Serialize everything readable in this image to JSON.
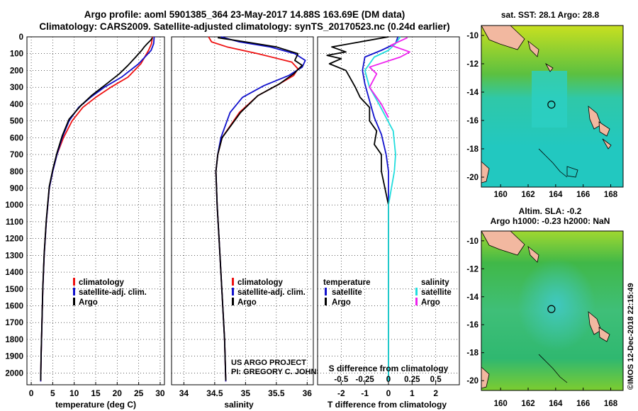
{
  "header": {
    "line1": "Argo profile: aoml 5901385_364 23-May-2017 14.88S 163.69E (DM data)",
    "line2": "Climatology: CARS2009. Satellite-adjusted climatology: synTS_20170523.nc (0.24d earlier)"
  },
  "credit": {
    "project": "US ARGO PROJECT",
    "pi": "PI: GREGORY C. JOHNSON",
    "imos": "©IMOS 12-Dec-2018 22:15:49"
  },
  "colors": {
    "climatology": "#ee1111",
    "satellite": "#1111cc",
    "argo": "#000000",
    "sat_salinity": "#22dddd",
    "argo_salinity": "#ee22ee",
    "land": "#f2b8a0",
    "sea_low": "#22c8c0",
    "sea_mid": "#22b050",
    "sea_high": "#c8e020"
  },
  "chart_data": [
    {
      "id": "temperature",
      "type": "line",
      "title": "",
      "xlabel": "temperature (deg C)",
      "ylabel": "",
      "xlim": [
        -1,
        31
      ],
      "ylim": [
        2070,
        0
      ],
      "xticks": [
        0,
        5,
        10,
        15,
        20,
        25,
        30
      ],
      "yticks": [
        0,
        100,
        200,
        300,
        400,
        500,
        600,
        700,
        800,
        900,
        1000,
        1100,
        1200,
        1300,
        1400,
        1500,
        1600,
        1700,
        1800,
        1900,
        2000
      ],
      "grid": true,
      "legend": {
        "position": "lower-center",
        "entries": [
          "climatology",
          "satellite-adj. clim.",
          "Argo"
        ]
      },
      "series": [
        {
          "name": "climatology",
          "color": "#ee1111",
          "x": [
            28.2,
            28.0,
            27.3,
            25.5,
            22.5,
            18.5,
            15.0,
            12.0,
            9.5,
            7.5,
            6.0,
            5.0,
            4.2,
            3.5,
            3.0,
            2.7,
            2.5,
            2.3,
            2.2
          ],
          "y": [
            0,
            40,
            80,
            160,
            240,
            300,
            360,
            420,
            500,
            600,
            700,
            800,
            900,
            1100,
            1300,
            1500,
            1700,
            1900,
            2050
          ]
        },
        {
          "name": "satellite-adj. clim.",
          "color": "#1111cc",
          "x": [
            28.6,
            28.5,
            27.9,
            25.0,
            21.0,
            17.0,
            13.8,
            11.0,
            8.8,
            7.2,
            6.0,
            5.0,
            4.2,
            3.5,
            3.0,
            2.7,
            2.5,
            2.3,
            2.2
          ],
          "y": [
            0,
            40,
            80,
            160,
            240,
            300,
            360,
            420,
            500,
            600,
            700,
            800,
            900,
            1100,
            1300,
            1500,
            1700,
            1900,
            2050
          ]
        },
        {
          "name": "Argo",
          "color": "#000000",
          "x": [
            28.2,
            27.8,
            27.0,
            26.3,
            25.7,
            24.3,
            22.5,
            20.5,
            17.5,
            14.0,
            11.5,
            8.8,
            7.2,
            6.0,
            5.0,
            4.2,
            3.5,
            3.0,
            2.7,
            2.5,
            2.3,
            2.2
          ],
          "y": [
            5,
            20,
            40,
            60,
            80,
            120,
            170,
            220,
            280,
            350,
            410,
            490,
            590,
            690,
            790,
            890,
            1090,
            1290,
            1490,
            1690,
            1890,
            2045
          ]
        }
      ]
    },
    {
      "id": "salinity",
      "type": "line",
      "title": "",
      "xlabel": "salinity",
      "ylabel": "",
      "xlim": [
        33.8,
        36.1
      ],
      "ylim": [
        2070,
        0
      ],
      "xticks": [
        34,
        34.5,
        35,
        35.5,
        36
      ],
      "grid": true,
      "legend": {
        "position": "lower-center",
        "entries": [
          "climatology",
          "satellite-adj. clim.",
          "Argo"
        ]
      },
      "series": [
        {
          "name": "climatology",
          "color": "#ee1111",
          "x": [
            34.4,
            34.45,
            34.7,
            35.2,
            35.75,
            35.85,
            35.78,
            35.55,
            35.2,
            34.9,
            34.62,
            34.55,
            34.52,
            34.54,
            34.57,
            34.6,
            34.63,
            34.66,
            34.68
          ],
          "y": [
            0,
            30,
            60,
            100,
            150,
            190,
            230,
            280,
            350,
            450,
            600,
            700,
            800,
            1000,
            1200,
            1400,
            1600,
            1800,
            2050
          ]
        },
        {
          "name": "satellite-adj. clim.",
          "color": "#1111cc",
          "x": [
            34.6,
            34.9,
            35.4,
            35.8,
            35.97,
            35.92,
            35.7,
            35.3,
            34.95,
            34.75,
            34.6,
            34.55,
            34.52,
            34.54,
            34.57,
            34.6,
            34.63,
            34.66,
            34.68
          ],
          "y": [
            0,
            30,
            60,
            100,
            140,
            180,
            230,
            290,
            360,
            450,
            600,
            700,
            800,
            1000,
            1200,
            1400,
            1600,
            1800,
            2050
          ]
        },
        {
          "name": "Argo",
          "color": "#000000",
          "x": [
            34.55,
            35.0,
            35.5,
            35.85,
            35.8,
            35.92,
            35.78,
            35.55,
            35.2,
            34.92,
            34.62,
            34.55,
            34.52,
            34.54,
            34.57,
            34.6,
            34.63,
            34.66,
            34.68
          ],
          "y": [
            5,
            30,
            60,
            100,
            140,
            170,
            220,
            280,
            350,
            450,
            600,
            700,
            800,
            1000,
            1200,
            1400,
            1600,
            1800,
            2045
          ]
        }
      ]
    },
    {
      "id": "difference",
      "type": "line",
      "title": "",
      "xlabel": "T difference from climatology",
      "x2label": "S difference from climatology",
      "ylabel": "",
      "xlim": [
        -3,
        3
      ],
      "x2lim": [
        -0.75,
        0.75
      ],
      "ylim": [
        2070,
        0
      ],
      "xticks": [
        -2,
        -1,
        0,
        1,
        2
      ],
      "x2ticks": [
        -0.5,
        -0.25,
        0,
        0.25,
        0.5
      ],
      "grid": true,
      "legend": {
        "position": "lower-center",
        "entries": [
          "temperature",
          "satellite",
          "Argo",
          "salinity",
          "satellite",
          "Argo"
        ]
      },
      "series": [
        {
          "name": "satellite",
          "color": "#1111cc",
          "x": [
            0.4,
            0.3,
            -0.3,
            -1.0,
            -1.1,
            -1.0,
            -0.8,
            -0.6,
            -0.3,
            -0.1,
            0.0,
            0.0,
            0.0,
            0.0,
            0.0
          ],
          "y": [
            0,
            40,
            80,
            120,
            200,
            280,
            380,
            480,
            580,
            700,
            800,
            1000,
            1400,
            1800,
            2050
          ]
        },
        {
          "name": "Argo",
          "color": "#000000",
          "x": [
            0.0,
            -1.2,
            -2.4,
            -1.8,
            -2.6,
            -2.0,
            -2.5,
            -1.8,
            -1.6,
            -1.4,
            -1.2,
            -0.8,
            -0.8,
            -0.5,
            -0.6,
            -0.3,
            -0.3,
            0.0,
            0.0,
            0.0
          ],
          "y": [
            0,
            30,
            60,
            90,
            110,
            130,
            160,
            200,
            250,
            300,
            360,
            420,
            500,
            560,
            640,
            700,
            800,
            1000,
            1500,
            2045
          ]
        },
        {
          "name": "salinity satellite",
          "color": "#22dddd",
          "x": [
            0.5,
            0.3,
            0.0,
            -0.6,
            -1.0,
            -0.8,
            -0.4,
            -0.1,
            0.2,
            0.3,
            0.25,
            0.0,
            0.0,
            0.0,
            0.0
          ],
          "y": [
            0,
            40,
            80,
            120,
            200,
            300,
            400,
            480,
            560,
            700,
            800,
            1000,
            1400,
            1800,
            2050
          ]
        },
        {
          "name": "salinity Argo",
          "color": "#ee22ee",
          "x": [
            0.8,
            0.1,
            0.9,
            0.5,
            -0.8,
            -0.5,
            -0.8,
            -0.3,
            0.0
          ],
          "y": [
            5,
            50,
            90,
            120,
            180,
            220,
            300,
            400,
            480
          ]
        }
      ]
    },
    {
      "id": "sst-map",
      "type": "heatmap",
      "title": "sat. SST: 28.1 Argo: 28.8",
      "xticks": [
        160,
        162,
        164,
        166,
        168
      ],
      "yticks": [
        -10,
        -12,
        -14,
        -16,
        -18,
        -20
      ],
      "xlim": [
        158.6,
        168.9
      ],
      "ylim": [
        -20.7,
        -9.3
      ],
      "marker": {
        "lon": 163.69,
        "lat": -14.88
      }
    },
    {
      "id": "sla-map",
      "type": "heatmap",
      "title": "Altim. SLA: -0.2",
      "subtitle": "Argo h1000: -0.23 h2000: NaN",
      "xticks": [
        160,
        162,
        164,
        166,
        168
      ],
      "yticks": [
        -10,
        -12,
        -14,
        -16,
        -18,
        -20
      ],
      "xlim": [
        158.6,
        168.9
      ],
      "ylim": [
        -20.7,
        -9.3
      ],
      "marker": {
        "lon": 163.69,
        "lat": -14.88
      }
    }
  ]
}
